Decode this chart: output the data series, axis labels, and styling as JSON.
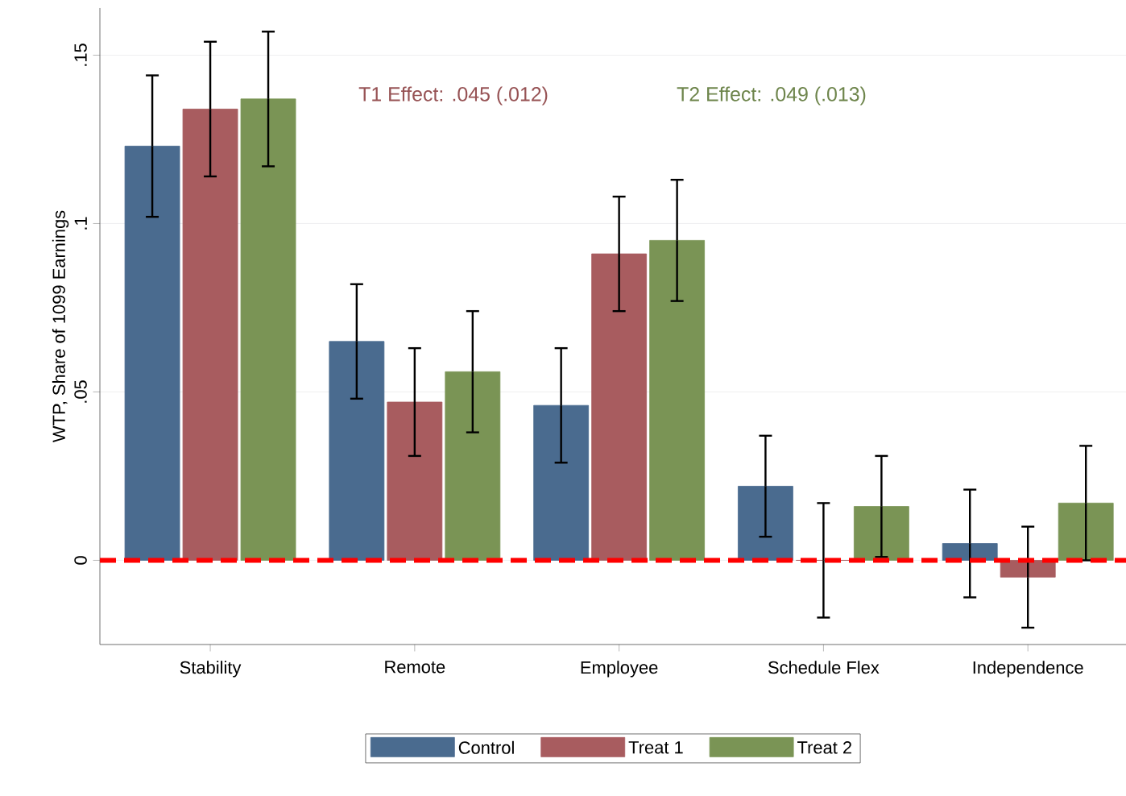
{
  "chart_data": {
    "type": "bar",
    "ylabel": "WTP, Share of 1099 Earnings",
    "categories": [
      "Stability",
      "Remote",
      "Employee",
      "Schedule Flex",
      "Independence"
    ],
    "series": [
      {
        "name": "Control",
        "color": "#4a6b8f",
        "values": [
          0.123,
          0.065,
          0.046,
          0.022,
          0.005
        ],
        "errors": [
          0.021,
          0.017,
          0.017,
          0.015,
          0.016
        ]
      },
      {
        "name": "Treat 1",
        "color": "#a85c5f",
        "values": [
          0.134,
          0.047,
          0.091,
          0.0,
          -0.005
        ],
        "errors": [
          0.02,
          0.016,
          0.017,
          0.017,
          0.015
        ]
      },
      {
        "name": "Treat 2",
        "color": "#7a9455",
        "values": [
          0.137,
          0.056,
          0.095,
          0.016,
          0.017
        ],
        "errors": [
          0.02,
          0.018,
          0.018,
          0.015,
          0.017
        ]
      }
    ],
    "ylim": [
      -0.025,
      0.164
    ],
    "yticks": [
      0,
      {
        "value": 0.05,
        "label": ".05"
      },
      {
        "value": 0.1,
        "label": ".1"
      },
      {
        "value": 0.15,
        "label": ".15"
      }
    ],
    "grid": "y",
    "legend": "bottom",
    "ref_lines": [
      {
        "axis": "y",
        "value": 0,
        "color": "#ff0000",
        "line_style": "dashed"
      }
    ],
    "annotations": [
      "T1 Effect: .045 (.012)",
      "T2 Effect: .049 (.013)"
    ]
  }
}
